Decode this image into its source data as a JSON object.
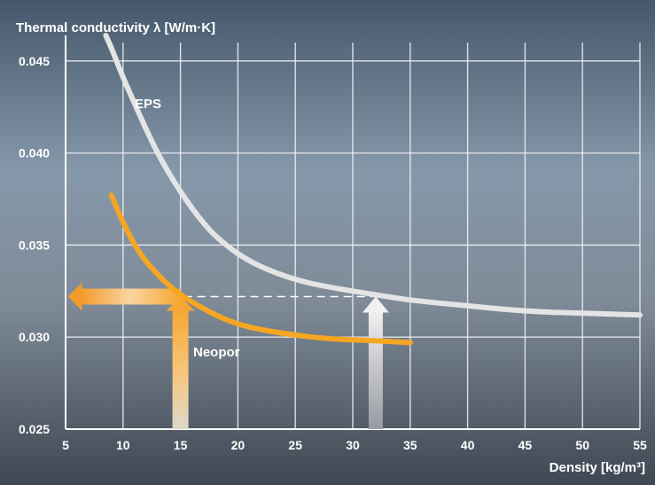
{
  "chart_data": {
    "type": "line",
    "ylabel": "Thermal conductivity  λ [W/m·K]",
    "xlabel": "Density [kg/m³]",
    "xlim": [
      5,
      55
    ],
    "ylim": [
      0.025,
      0.046
    ],
    "x_ticks": [
      5,
      10,
      15,
      20,
      25,
      30,
      35,
      40,
      45,
      50,
      55
    ],
    "y_ticks": [
      0.025,
      0.03,
      0.035,
      0.04,
      0.045
    ],
    "x_tick_labels": [
      "5",
      "10",
      "15",
      "20",
      "25",
      "30",
      "35",
      "40",
      "45",
      "50",
      "55"
    ],
    "y_tick_labels": [
      "0.025",
      "0.030",
      "0.035",
      "0.040",
      "0.045"
    ],
    "grid": true,
    "series": [
      {
        "name": "EPS",
        "color": "#e4e4e4",
        "points": [
          [
            8.5,
            0.0466
          ],
          [
            9,
            0.0457
          ],
          [
            10,
            0.0441
          ],
          [
            11,
            0.0427
          ],
          [
            12,
            0.0413
          ],
          [
            13,
            0.04
          ],
          [
            14,
            0.0389
          ],
          [
            15,
            0.0379
          ],
          [
            16,
            0.037
          ],
          [
            17,
            0.0362
          ],
          [
            18,
            0.0355
          ],
          [
            20,
            0.0345
          ],
          [
            22,
            0.0338
          ],
          [
            25,
            0.0331
          ],
          [
            28,
            0.0327
          ],
          [
            32,
            0.0323
          ],
          [
            35,
            0.032
          ],
          [
            40,
            0.0317
          ],
          [
            45,
            0.0314
          ],
          [
            50,
            0.0313
          ],
          [
            55,
            0.0312
          ]
        ]
      },
      {
        "name": "Neopor",
        "color": "#f5a623",
        "points": [
          [
            9,
            0.0377
          ],
          [
            10,
            0.0362
          ],
          [
            11,
            0.035
          ],
          [
            12,
            0.0341
          ],
          [
            13,
            0.0334
          ],
          [
            14,
            0.0328
          ],
          [
            15,
            0.0323
          ],
          [
            16,
            0.0319
          ],
          [
            18,
            0.0312
          ],
          [
            20,
            0.0307
          ],
          [
            22,
            0.0304
          ],
          [
            25,
            0.0301
          ],
          [
            28,
            0.0299
          ],
          [
            32,
            0.0298
          ],
          [
            35,
            0.0297
          ]
        ]
      }
    ],
    "reference_level": 0.0322,
    "arrows": [
      {
        "from_x": 15,
        "from_y": 0.025,
        "to_x": 15,
        "to_y": 0.0322,
        "color": "#f5b84a"
      },
      {
        "from_x": 15,
        "from_y": 0.0322,
        "to_x": 5.2,
        "to_y": 0.0322,
        "color": "#f5b84a"
      },
      {
        "from_x": 32,
        "from_y": 0.025,
        "to_x": 32,
        "to_y": 0.0322,
        "color": "#e8e8e8"
      }
    ]
  }
}
